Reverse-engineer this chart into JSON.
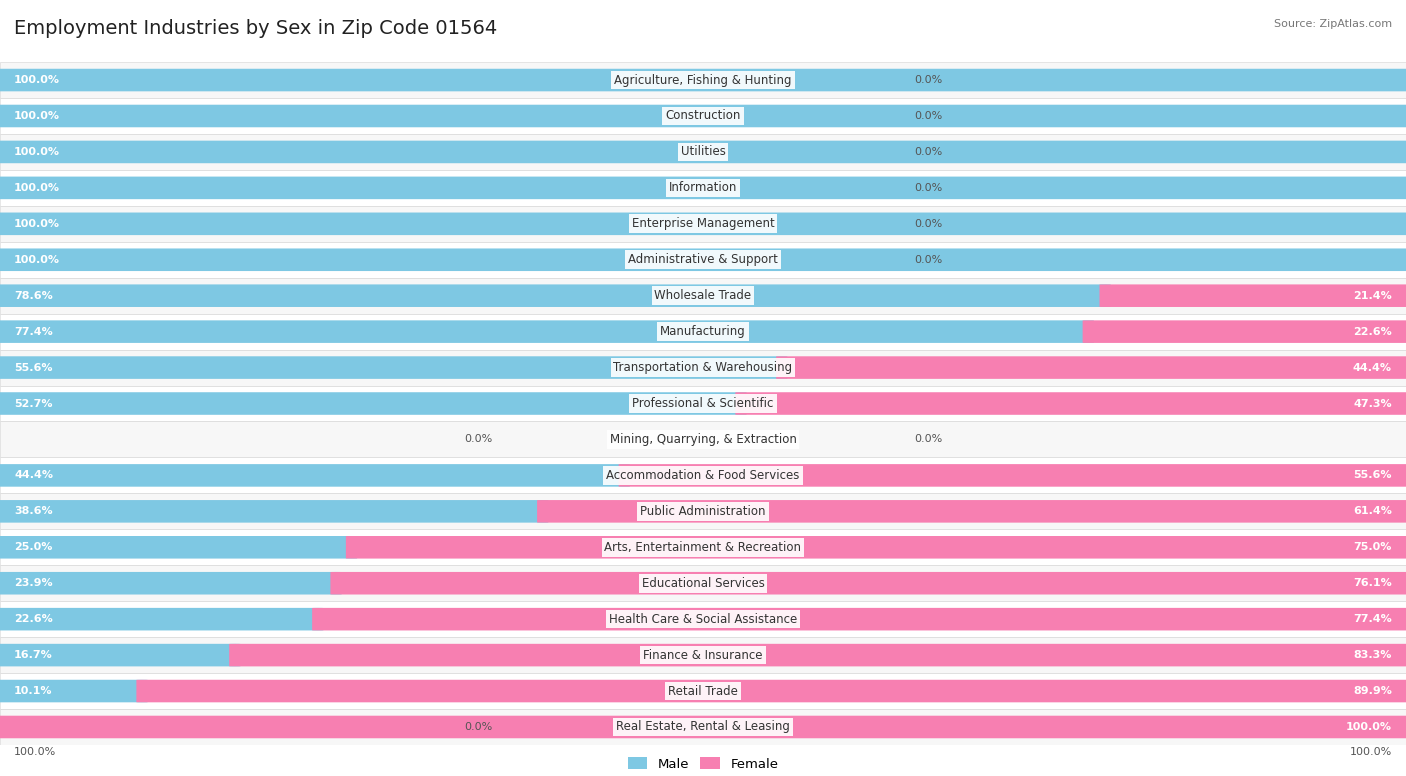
{
  "title": "Employment Industries by Sex in Zip Code 01564",
  "source": "Source: ZipAtlas.com",
  "categories": [
    "Agriculture, Fishing & Hunting",
    "Construction",
    "Utilities",
    "Information",
    "Enterprise Management",
    "Administrative & Support",
    "Wholesale Trade",
    "Manufacturing",
    "Transportation & Warehousing",
    "Professional & Scientific",
    "Mining, Quarrying, & Extraction",
    "Accommodation & Food Services",
    "Public Administration",
    "Arts, Entertainment & Recreation",
    "Educational Services",
    "Health Care & Social Assistance",
    "Finance & Insurance",
    "Retail Trade",
    "Real Estate, Rental & Leasing"
  ],
  "male_pct": [
    100.0,
    100.0,
    100.0,
    100.0,
    100.0,
    100.0,
    78.6,
    77.4,
    55.6,
    52.7,
    0.0,
    44.4,
    38.6,
    25.0,
    23.9,
    22.6,
    16.7,
    10.1,
    0.0
  ],
  "female_pct": [
    0.0,
    0.0,
    0.0,
    0.0,
    0.0,
    0.0,
    21.4,
    22.6,
    44.4,
    47.3,
    0.0,
    55.6,
    61.4,
    75.0,
    76.1,
    77.4,
    83.3,
    89.9,
    100.0
  ],
  "male_color": "#7ec8e3",
  "female_color": "#f77fb1",
  "row_bg_even": "#f7f7f7",
  "row_bg_odd": "#ffffff",
  "title_fontsize": 14,
  "label_fontsize": 8.5,
  "value_fontsize": 8,
  "bar_height": 0.62,
  "figsize": [
    14.06,
    7.76
  ]
}
